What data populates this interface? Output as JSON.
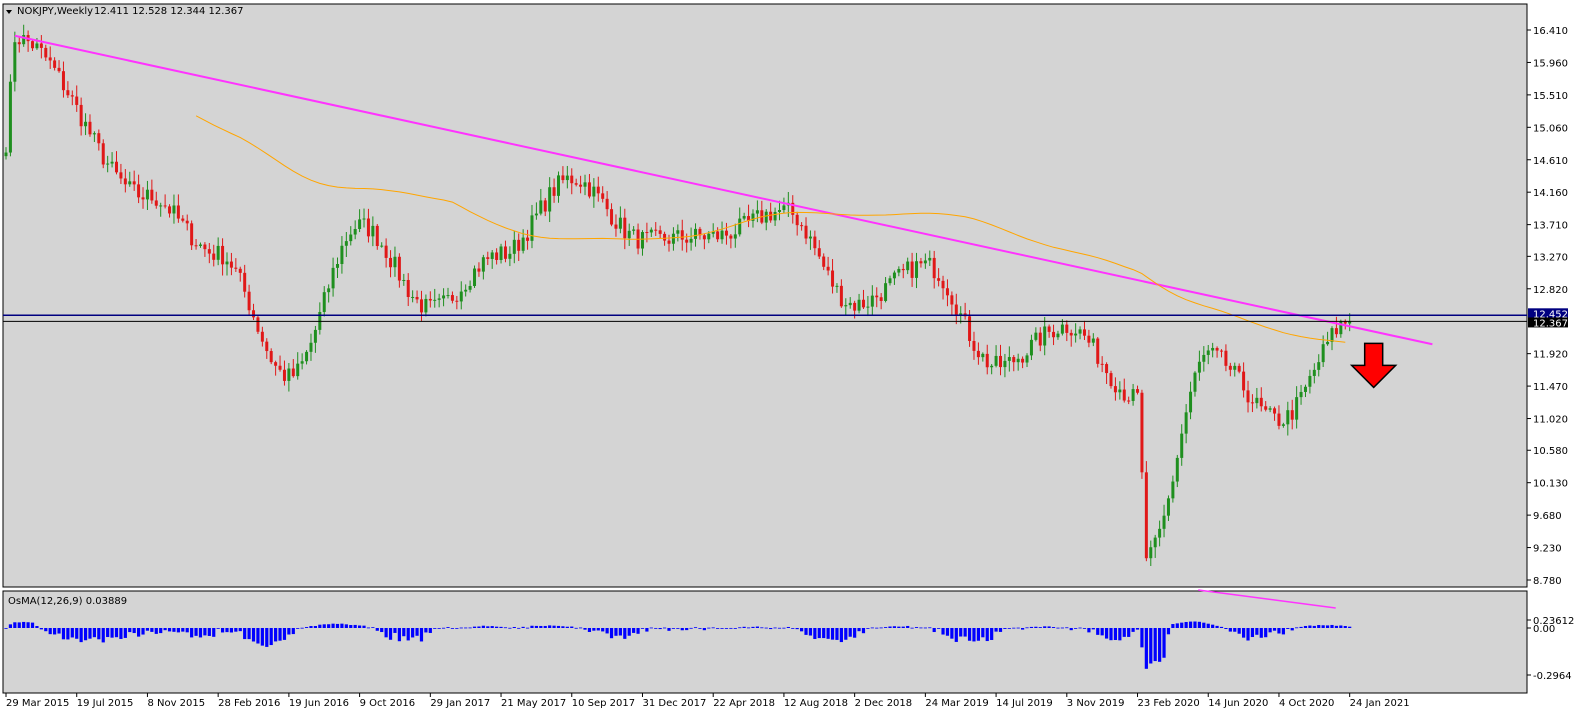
{
  "header": {
    "symbol": "NOKJPY,Weekly",
    "ohlc": "12.411 12.528 12.344 12.367"
  },
  "indicator_label": "OsMA(12,26,9) 0.03889",
  "price_axis_labels": [
    "16.410",
    "15.960",
    "15.510",
    "15.060",
    "14.610",
    "14.160",
    "13.710",
    "13.270",
    "12.820",
    "11.920",
    "11.470",
    "11.020",
    "10.580",
    "10.130",
    "9.680",
    "9.230",
    "8.780"
  ],
  "price_tags": {
    "upper": "12.452",
    "lower": "12.367"
  },
  "osma_axis_labels": [
    "0.23612",
    "0.00",
    "-0.2964"
  ],
  "date_axis_labels": [
    "29 Mar 2015",
    "19 Jul 2015",
    "8 Nov 2015",
    "28 Feb 2016",
    "19 Jun 2016",
    "9 Oct 2016",
    "29 Jan 2017",
    "21 May 2017",
    "10 Sep 2017",
    "31 Dec 2017",
    "22 Apr 2018",
    "12 Aug 2018",
    "2 Dec 2018",
    "24 Mar 2019",
    "14 Jul 2019",
    "3 Nov 2019",
    "23 Feb 2020",
    "14 Jun 2020",
    "4 Oct 2020",
    "24 Jan 2021"
  ],
  "colors": {
    "background": "#d4d4d4",
    "bull_candle": "#1f8f1f",
    "bear_candle": "#e01818",
    "trendline": "#ff33ff",
    "moving_average": "#ffa500",
    "horizontal_level": "#000080",
    "current_price_line": "#000000",
    "osma_bars": "#0000ff",
    "signal_arrow": "#ff0000"
  },
  "annotations": {
    "trendline": "descending",
    "arrow": "down",
    "osma_divergence_line": true
  },
  "chart_data": {
    "type": "candlestick",
    "timeframe": "Weekly",
    "price_range": [
      8.78,
      16.41
    ],
    "trendline_points": [
      {
        "date": "12 Apr 2015",
        "price": 16.33
      },
      {
        "date": "Mar 2021",
        "price": 12.05
      }
    ],
    "horizontal_level": 12.452,
    "last_close": 12.367,
    "moving_average_end": 12.6,
    "swing_points": [
      {
        "date": "29 Mar 2015",
        "price": 14.85
      },
      {
        "date": "12 Apr 2015",
        "price": 16.3
      },
      {
        "date": "8 Nov 2015",
        "price": 14.1
      },
      {
        "date": "28 Feb 2016",
        "price": 13.3
      },
      {
        "date": "19 Jun 2016",
        "price": 11.6
      },
      {
        "date": "9 Oct 2016",
        "price": 13.7
      },
      {
        "date": "29 Jan 2017",
        "price": 12.55
      },
      {
        "date": "21 May 2017",
        "price": 13.3
      },
      {
        "date": "10 Sep 2017",
        "price": 14.35
      },
      {
        "date": "31 Dec 2017",
        "price": 13.5
      },
      {
        "date": "22 Apr 2018",
        "price": 13.55
      },
      {
        "date": "12 Aug 2018",
        "price": 13.9
      },
      {
        "date": "2 Dec 2018",
        "price": 12.6
      },
      {
        "date": "24 Mar 2019",
        "price": 13.15
      },
      {
        "date": "14 Jul 2019",
        "price": 11.75
      },
      {
        "date": "3 Nov 2019",
        "price": 12.3
      },
      {
        "date": "23 Feb 2020",
        "price": 11.3
      },
      {
        "date": "8 Mar 2020",
        "price": 9.1
      },
      {
        "date": "14 Jun 2020",
        "price": 11.9
      },
      {
        "date": "4 Oct 2020",
        "price": 11.0
      },
      {
        "date": "24 Jan 2021",
        "price": 12.37
      }
    ],
    "osma_range": [
      -0.2964,
      0.23612
    ],
    "osma_current": 0.03889
  }
}
